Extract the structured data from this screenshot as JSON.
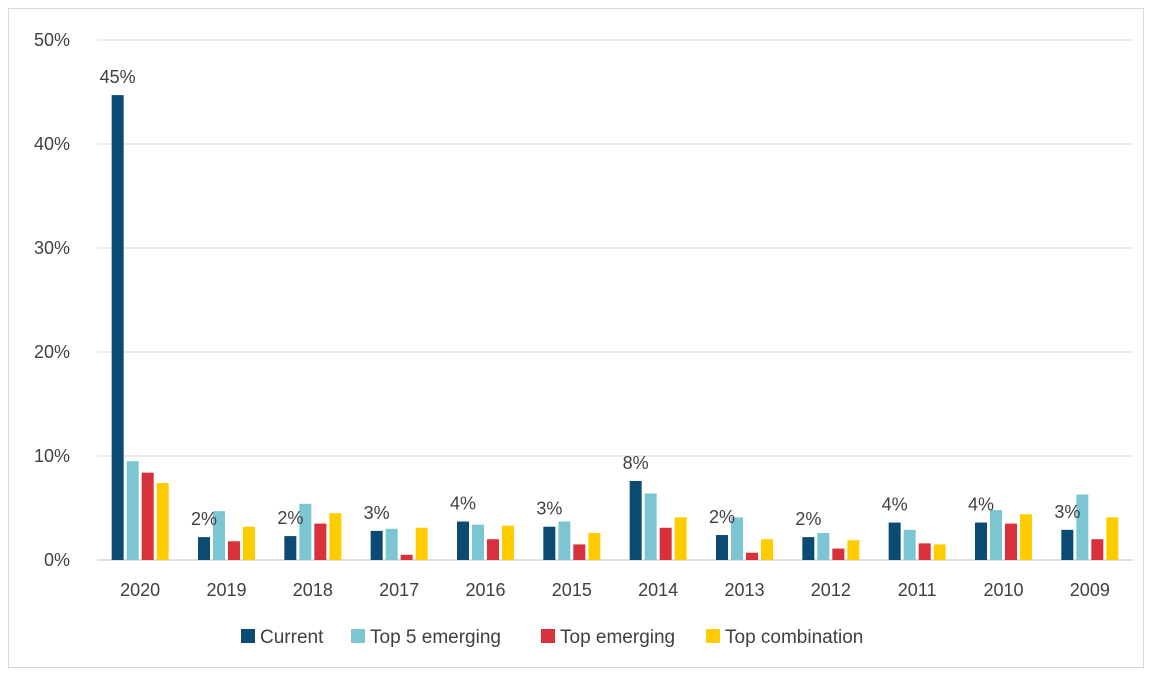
{
  "chart_data": {
    "type": "bar",
    "title": "",
    "xlabel": "",
    "ylabel": "",
    "ylim": [
      0,
      50
    ],
    "y_ticks": [
      "0%",
      "10%",
      "20%",
      "30%",
      "40%",
      "50%"
    ],
    "grid": true,
    "legend_position": "bottom",
    "categories": [
      "2020",
      "2019",
      "2018",
      "2017",
      "2016",
      "2015",
      "2014",
      "2013",
      "2012",
      "2011",
      "2010",
      "2009"
    ],
    "series": [
      {
        "name": "Current",
        "color": "#0b4a72",
        "values": [
          44.7,
          2.2,
          2.3,
          2.8,
          3.7,
          3.2,
          7.6,
          2.4,
          2.2,
          3.6,
          3.6,
          2.9
        ]
      },
      {
        "name": "Top 5 emerging",
        "color": "#7cc6d4",
        "values": [
          9.5,
          4.7,
          5.4,
          3.0,
          3.4,
          3.7,
          6.4,
          4.1,
          2.6,
          2.9,
          4.8,
          6.3
        ]
      },
      {
        "name": "Top emerging",
        "color": "#d9313c",
        "values": [
          8.4,
          1.8,
          3.5,
          0.5,
          2.0,
          1.5,
          3.1,
          0.7,
          1.1,
          1.6,
          3.5,
          2.0
        ]
      },
      {
        "name": "Top combination",
        "color": "#ffcc00",
        "values": [
          7.4,
          3.2,
          4.5,
          3.1,
          3.3,
          2.6,
          4.1,
          2.0,
          1.9,
          1.5,
          4.4,
          4.1
        ]
      }
    ],
    "data_labels": [
      "45%",
      "2%",
      "2%",
      "3%",
      "4%",
      "3%",
      "8%",
      "2%",
      "2%",
      "4%",
      "4%",
      "3%"
    ]
  }
}
